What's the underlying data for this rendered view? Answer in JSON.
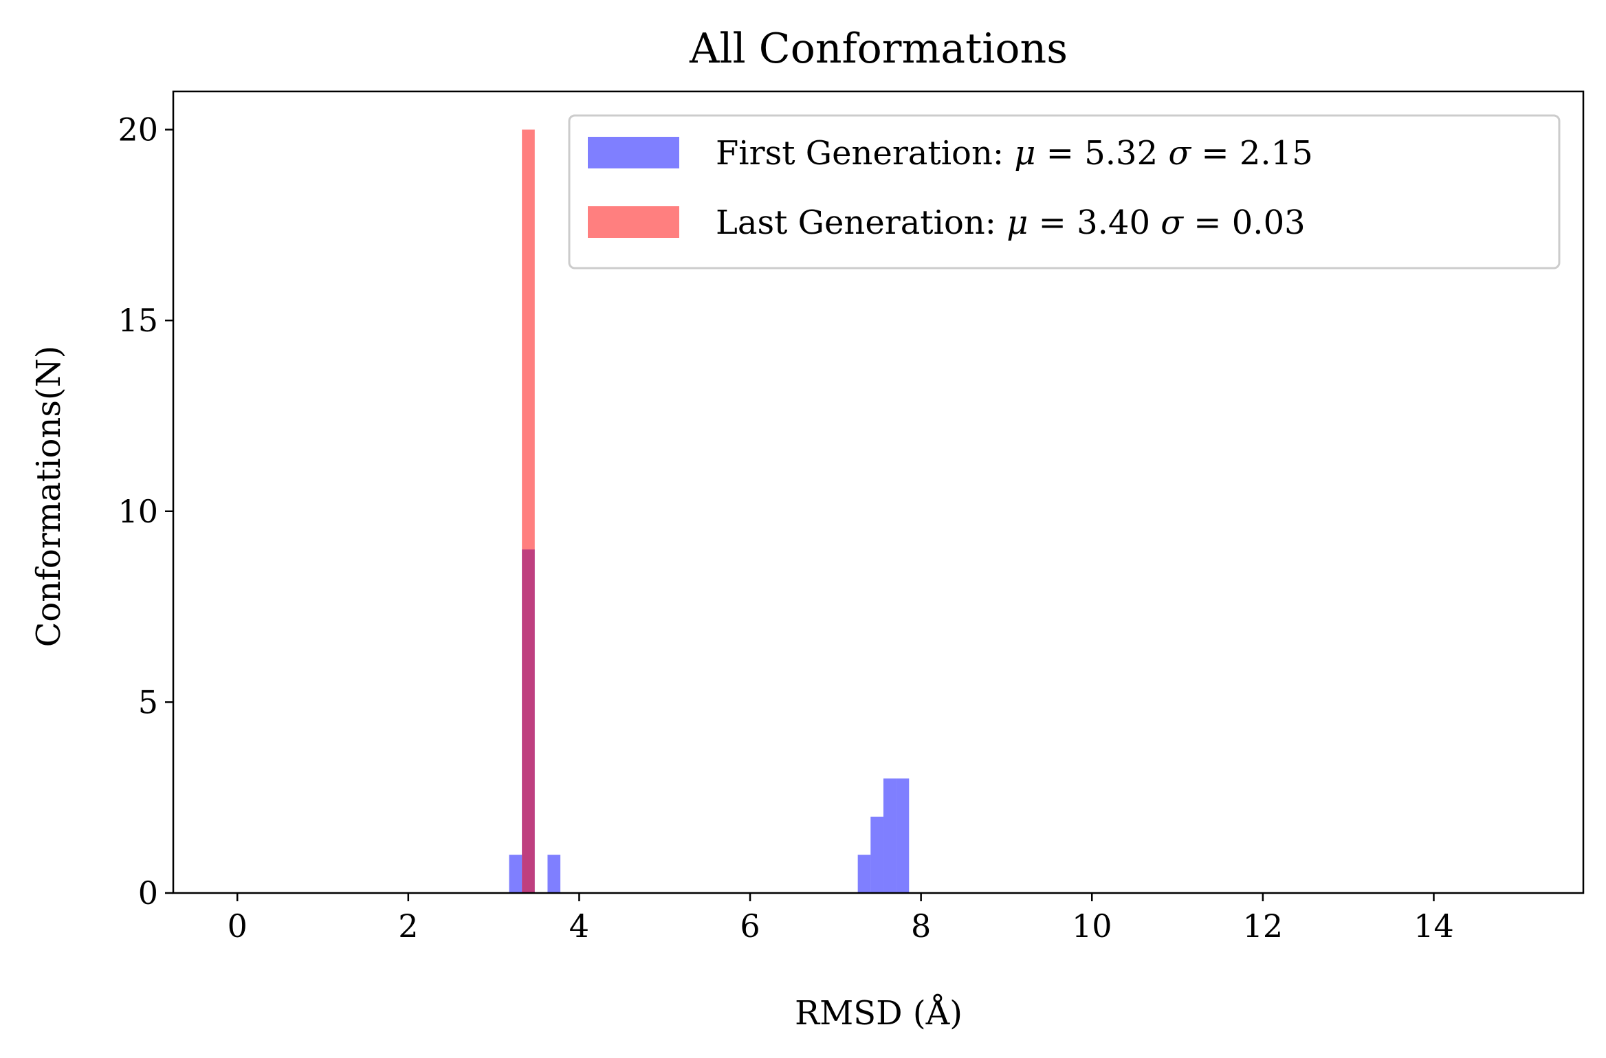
{
  "chart_data": {
    "type": "bar",
    "subtype": "histogram",
    "title": "All Conformations",
    "xlabel": "RMSD (Å)",
    "ylabel": "Conformations(N)",
    "xlim": [
      -0.75,
      15.75
    ],
    "ylim": [
      0,
      21
    ],
    "xticks": [
      0,
      2,
      4,
      6,
      8,
      10,
      12,
      14
    ],
    "yticks": [
      0,
      5,
      10,
      15,
      20
    ],
    "grid": false,
    "legend_position": "top-right",
    "series": [
      {
        "name": "First Generation",
        "stats": {
          "mu": "5.32",
          "sigma": "2.15"
        },
        "color": "#0000ff",
        "alpha": 0.5,
        "bins": [
          {
            "x0": 3.18,
            "x1": 3.33,
            "count": 1
          },
          {
            "x0": 3.33,
            "x1": 3.48,
            "count": 9
          },
          {
            "x0": 3.63,
            "x1": 3.78,
            "count": 1
          },
          {
            "x0": 7.26,
            "x1": 7.41,
            "count": 1
          },
          {
            "x0": 7.41,
            "x1": 7.56,
            "count": 2
          },
          {
            "x0": 7.56,
            "x1": 7.71,
            "count": 3
          },
          {
            "x0": 7.71,
            "x1": 7.86,
            "count": 3
          }
        ]
      },
      {
        "name": "Last Generation",
        "stats": {
          "mu": "3.40",
          "sigma": "0.03"
        },
        "color": "#ff0000",
        "alpha": 0.5,
        "bins": [
          {
            "x0": 3.33,
            "x1": 3.48,
            "count": 20
          }
        ]
      }
    ]
  }
}
